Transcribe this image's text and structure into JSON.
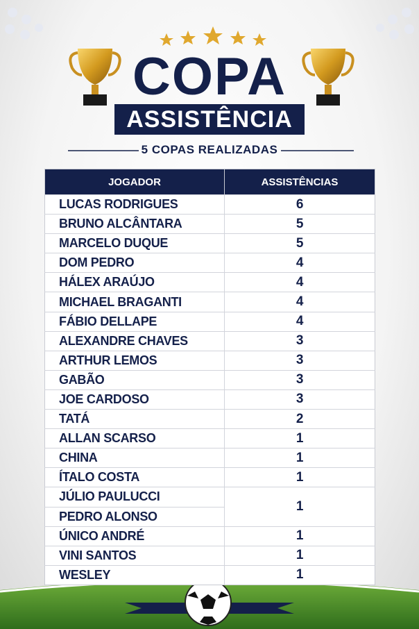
{
  "header": {
    "title": "COPA",
    "subtitle": "ASSISTÊNCIA",
    "caption": "5 COPAS REALIZADAS"
  },
  "table": {
    "columns": [
      "JOGADOR",
      "ASSISTÊNCIAS"
    ],
    "rows": [
      {
        "player": "LUCAS RODRIGUES",
        "assists": 6
      },
      {
        "player": "BRUNO ALCÂNTARA",
        "assists": 5
      },
      {
        "player": "MARCELO DUQUE",
        "assists": 5
      },
      {
        "player": "DOM PEDRO",
        "assists": 4
      },
      {
        "player": "HÁLEX ARAÚJO",
        "assists": 4
      },
      {
        "player": "MICHAEL BRAGANTI",
        "assists": 4
      },
      {
        "player": "FÁBIO DELLAPE",
        "assists": 4
      },
      {
        "player": "ALEXANDRE CHAVES",
        "assists": 3
      },
      {
        "player": "ARTHUR LEMOS",
        "assists": 3
      },
      {
        "player": "GABÃO",
        "assists": 3
      },
      {
        "player": "JOE CARDOSO",
        "assists": 3
      },
      {
        "player": "TATÁ",
        "assists": 2
      },
      {
        "player": "ALLAN SCARSO",
        "assists": 1
      },
      {
        "player": "CHINA",
        "assists": 1
      },
      {
        "player": "ÍTALO COSTA",
        "assists": 1
      },
      {
        "player": "JÚLIO PAULUCCI",
        "assists": 1
      },
      {
        "player": "PEDRO ALONSO",
        "assists": null
      },
      {
        "player": "ÚNICO ANDRÉ",
        "assists": 1
      },
      {
        "player": "VINI SANTOS",
        "assists": 1
      },
      {
        "player": "WESLEY",
        "assists": 1
      }
    ]
  }
}
